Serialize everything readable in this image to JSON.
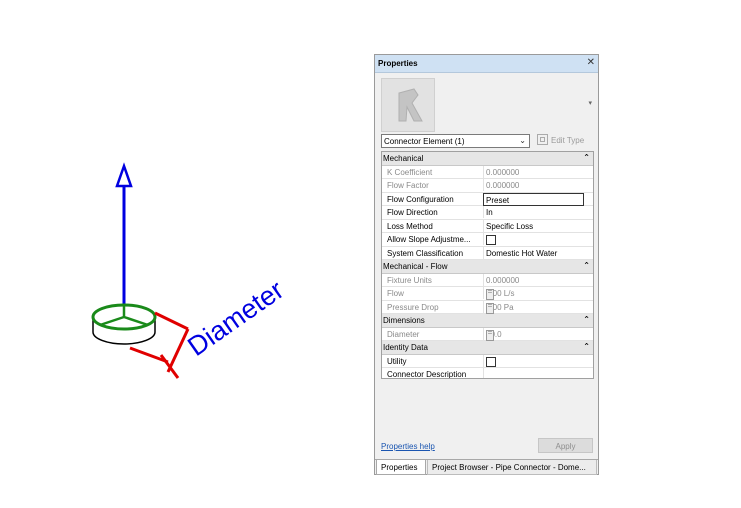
{
  "viewport": {
    "dimension_label": "Diameter",
    "colors": {
      "arrow": "#0000e0",
      "connector_ring": "#1a8a1a",
      "dimension": "#e00000",
      "label": "#0000e0"
    }
  },
  "properties_panel": {
    "title": "Properties",
    "close_glyph": "✕",
    "type_selector": "Connector Element (1)",
    "edit_type_label": "Edit Type",
    "sections": [
      {
        "name": "Mechanical",
        "rows": [
          {
            "name": "K Coefficient",
            "value": "0.000000",
            "disabled": true
          },
          {
            "name": "Flow Factor",
            "value": "0.000000",
            "disabled": true
          },
          {
            "name": "Flow Configuration",
            "value": "Preset",
            "editing": true
          },
          {
            "name": "Flow Direction",
            "value": "In"
          },
          {
            "name": "Loss Method",
            "value": "Specific Loss"
          },
          {
            "name": "Allow Slope Adjustme...",
            "checkbox": true
          },
          {
            "name": "System Classification",
            "value": "Domestic Hot Water"
          }
        ]
      },
      {
        "name": "Mechanical - Flow",
        "rows": [
          {
            "name": "Fixture Units",
            "value": "0.000000",
            "disabled": true
          },
          {
            "name": "Flow",
            "value": "1.00 L/s",
            "disabled": true
          },
          {
            "name": "Pressure Drop",
            "value": "0.00 Pa",
            "disabled": true
          }
        ]
      },
      {
        "name": "Dimensions",
        "rows": [
          {
            "name": "Diameter",
            "value": "40.0",
            "disabled": true
          }
        ]
      },
      {
        "name": "Identity Data",
        "rows": [
          {
            "name": "Utility",
            "checkbox": true
          },
          {
            "name": "Connector Description",
            "value": ""
          }
        ]
      }
    ],
    "help_link": "Properties help",
    "apply_label": "Apply",
    "tabs": [
      "Properties",
      "Project Browser - Pipe Connector - Dome..."
    ]
  }
}
